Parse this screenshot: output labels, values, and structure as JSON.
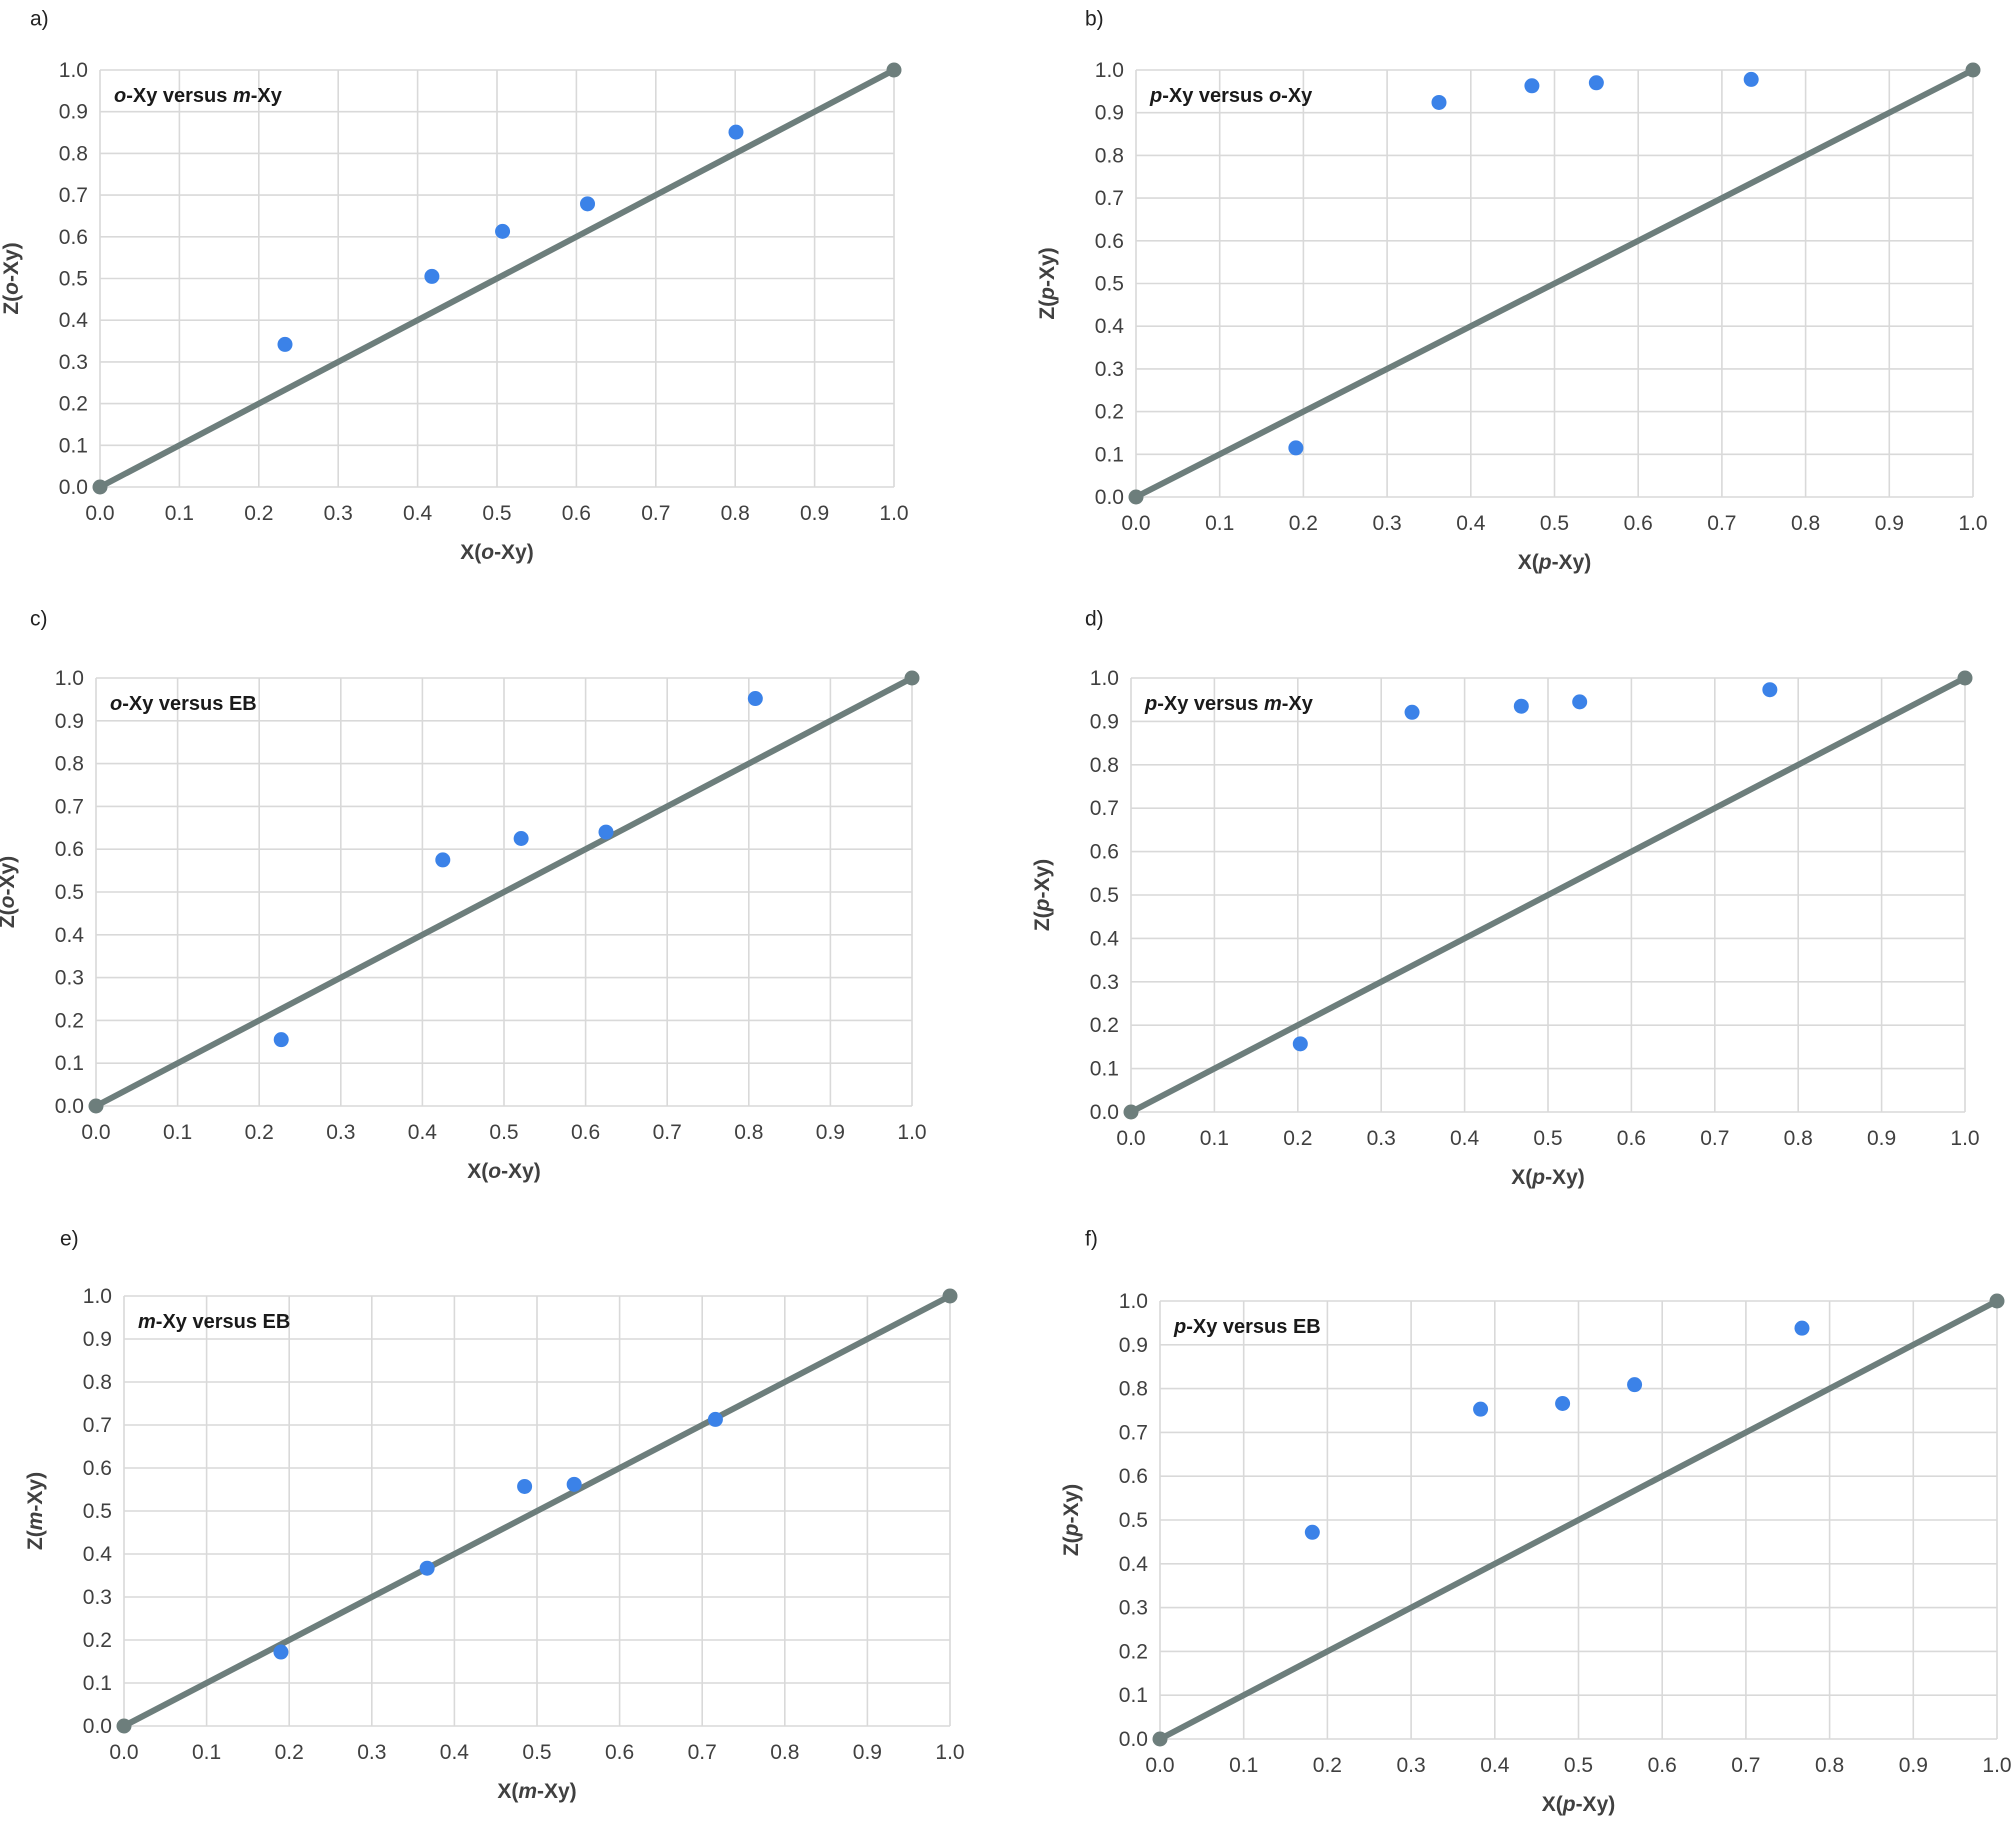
{
  "style": {
    "point_color": "#3b82e8",
    "line_color": "#6d7e7c",
    "grid_color": "#d9d9d9",
    "text_color": "#404040"
  },
  "chart_data": [
    {
      "panel": "a)",
      "type": "scatter",
      "title": "o-Xy versus m-Xy",
      "title_parts": [
        [
          "o",
          "italic"
        ],
        [
          "-Xy versus ",
          "normal"
        ],
        [
          "m",
          "italic"
        ],
        [
          "-Xy",
          "normal"
        ]
      ],
      "xlabel": "X(o-Xy)",
      "xlabel_parts": [
        [
          "X(",
          "normal"
        ],
        [
          "o",
          "italic"
        ],
        [
          "-Xy)",
          "normal"
        ]
      ],
      "ylabel": "Z(o-Xy)",
      "ylabel_parts": [
        [
          "Z(",
          "normal"
        ],
        [
          "o",
          "italic"
        ],
        [
          "-Xy)",
          "normal"
        ]
      ],
      "xlim": [
        0,
        1
      ],
      "ylim": [
        0,
        1
      ],
      "x_ticks": [
        "0.0",
        "0.1",
        "0.2",
        "0.3",
        "0.4",
        "0.5",
        "0.6",
        "0.7",
        "0.8",
        "0.9",
        "1.0"
      ],
      "y_ticks": [
        "0.0",
        "0.1",
        "0.2",
        "0.3",
        "0.4",
        "0.5",
        "0.6",
        "0.7",
        "0.8",
        "0.9",
        "1.0"
      ],
      "grid": true,
      "diagonal": [
        [
          0,
          0
        ],
        [
          1,
          1
        ]
      ],
      "points": [
        [
          0.233,
          0.342
        ],
        [
          0.418,
          0.505
        ],
        [
          0.507,
          0.613
        ],
        [
          0.614,
          0.679
        ],
        [
          0.801,
          0.851
        ]
      ]
    },
    {
      "panel": "b)",
      "type": "scatter",
      "title": "p-Xy versus o-Xy",
      "title_parts": [
        [
          "p",
          "italic"
        ],
        [
          "-Xy versus ",
          "normal"
        ],
        [
          "o",
          "italic"
        ],
        [
          "-Xy",
          "normal"
        ]
      ],
      "xlabel": "X(p-Xy)",
      "xlabel_parts": [
        [
          "X(",
          "normal"
        ],
        [
          "p",
          "italic"
        ],
        [
          "-Xy)",
          "normal"
        ]
      ],
      "ylabel": "Z(p-Xy)",
      "ylabel_parts": [
        [
          "Z(",
          "normal"
        ],
        [
          "p",
          "italic"
        ],
        [
          "-Xy)",
          "normal"
        ]
      ],
      "xlim": [
        0,
        1
      ],
      "ylim": [
        0,
        1
      ],
      "x_ticks": [
        "0.0",
        "0.1",
        "0.2",
        "0.3",
        "0.4",
        "0.5",
        "0.6",
        "0.7",
        "0.8",
        "0.9",
        "1.0"
      ],
      "y_ticks": [
        "0.0",
        "0.1",
        "0.2",
        "0.3",
        "0.4",
        "0.5",
        "0.6",
        "0.7",
        "0.8",
        "0.9",
        "1.0"
      ],
      "grid": true,
      "diagonal": [
        [
          0,
          0
        ],
        [
          1,
          1
        ]
      ],
      "points": [
        [
          0.191,
          0.115
        ],
        [
          0.362,
          0.924
        ],
        [
          0.473,
          0.963
        ],
        [
          0.55,
          0.97
        ],
        [
          0.735,
          0.978
        ]
      ]
    },
    {
      "panel": "c)",
      "type": "scatter",
      "title": "o-Xy versus EB",
      "title_parts": [
        [
          "o",
          "italic"
        ],
        [
          "-Xy versus EB",
          "normal"
        ]
      ],
      "xlabel": "X(o-Xy)",
      "xlabel_parts": [
        [
          "X(",
          "normal"
        ],
        [
          "o",
          "italic"
        ],
        [
          "-Xy)",
          "normal"
        ]
      ],
      "ylabel": "Z(o-Xy)",
      "ylabel_parts": [
        [
          "Z(",
          "normal"
        ],
        [
          "o",
          "italic"
        ],
        [
          "-Xy)",
          "normal"
        ]
      ],
      "xlim": [
        0,
        1
      ],
      "ylim": [
        0,
        1
      ],
      "x_ticks": [
        "0.0",
        "0.1",
        "0.2",
        "0.3",
        "0.4",
        "0.5",
        "0.6",
        "0.7",
        "0.8",
        "0.9",
        "1.0"
      ],
      "y_ticks": [
        "0.0",
        "0.1",
        "0.2",
        "0.3",
        "0.4",
        "0.5",
        "0.6",
        "0.7",
        "0.8",
        "0.9",
        "1.0"
      ],
      "grid": true,
      "diagonal": [
        [
          0,
          0
        ],
        [
          1,
          1
        ]
      ],
      "points": [
        [
          0.227,
          0.155
        ],
        [
          0.425,
          0.575
        ],
        [
          0.521,
          0.625
        ],
        [
          0.625,
          0.64
        ],
        [
          0.808,
          0.952
        ]
      ]
    },
    {
      "panel": "d)",
      "type": "scatter",
      "title": "p-Xy versus m-Xy",
      "title_parts": [
        [
          "p",
          "italic"
        ],
        [
          "-Xy versus ",
          "normal"
        ],
        [
          "m",
          "italic"
        ],
        [
          "-Xy",
          "normal"
        ]
      ],
      "xlabel": "X(p-Xy)",
      "xlabel_parts": [
        [
          "X(",
          "normal"
        ],
        [
          "p",
          "italic"
        ],
        [
          "-Xy)",
          "normal"
        ]
      ],
      "ylabel": "Z(p-Xy)",
      "ylabel_parts": [
        [
          "Z(",
          "normal"
        ],
        [
          "p",
          "italic"
        ],
        [
          "-Xy)",
          "normal"
        ]
      ],
      "xlim": [
        0,
        1
      ],
      "ylim": [
        0,
        1
      ],
      "x_ticks": [
        "0.0",
        "0.1",
        "0.2",
        "0.3",
        "0.4",
        "0.5",
        "0.6",
        "0.7",
        "0.8",
        "0.9",
        "1.0"
      ],
      "y_ticks": [
        "0.0",
        "0.1",
        "0.2",
        "0.3",
        "0.4",
        "0.5",
        "0.6",
        "0.7",
        "0.8",
        "0.9",
        "1.0"
      ],
      "grid": true,
      "diagonal": [
        [
          0,
          0
        ],
        [
          1,
          1
        ]
      ],
      "points": [
        [
          0.203,
          0.157
        ],
        [
          0.337,
          0.921
        ],
        [
          0.468,
          0.935
        ],
        [
          0.538,
          0.945
        ],
        [
          0.766,
          0.973
        ]
      ]
    },
    {
      "panel": "e)",
      "type": "scatter",
      "title": "m-Xy versus EB",
      "title_parts": [
        [
          "m",
          "italic"
        ],
        [
          "-Xy versus EB",
          "normal"
        ]
      ],
      "xlabel": "X(m-Xy)",
      "xlabel_parts": [
        [
          "X(",
          "normal"
        ],
        [
          "m",
          "italic"
        ],
        [
          "-Xy)",
          "normal"
        ]
      ],
      "ylabel": "Z(m-Xy)",
      "ylabel_parts": [
        [
          "Z(",
          "normal"
        ],
        [
          "m",
          "italic"
        ],
        [
          "-Xy)",
          "normal"
        ]
      ],
      "xlim": [
        0,
        1
      ],
      "ylim": [
        0,
        1
      ],
      "x_ticks": [
        "0.0",
        "0.1",
        "0.2",
        "0.3",
        "0.4",
        "0.5",
        "0.6",
        "0.7",
        "0.8",
        "0.9",
        "1.0"
      ],
      "y_ticks": [
        "0.0",
        "0.1",
        "0.2",
        "0.3",
        "0.4",
        "0.5",
        "0.6",
        "0.7",
        "0.8",
        "0.9",
        "1.0"
      ],
      "grid": true,
      "diagonal": [
        [
          0,
          0
        ],
        [
          1,
          1
        ]
      ],
      "points": [
        [
          0.19,
          0.172
        ],
        [
          0.367,
          0.367
        ],
        [
          0.485,
          0.557
        ],
        [
          0.545,
          0.562
        ],
        [
          0.716,
          0.713
        ]
      ]
    },
    {
      "panel": "f)",
      "type": "scatter",
      "title": "p-Xy versus EB",
      "title_parts": [
        [
          "p",
          "italic"
        ],
        [
          "-Xy versus EB",
          "normal"
        ]
      ],
      "xlabel": "X(p-Xy)",
      "xlabel_parts": [
        [
          "X(",
          "normal"
        ],
        [
          "p",
          "italic"
        ],
        [
          "-Xy)",
          "normal"
        ]
      ],
      "ylabel": "Z(p-Xy)",
      "ylabel_parts": [
        [
          "Z(",
          "normal"
        ],
        [
          "p",
          "italic"
        ],
        [
          "-Xy)",
          "normal"
        ]
      ],
      "xlim": [
        0,
        1
      ],
      "ylim": [
        0,
        1
      ],
      "x_ticks": [
        "0.0",
        "0.1",
        "0.2",
        "0.3",
        "0.4",
        "0.5",
        "0.6",
        "0.7",
        "0.8",
        "0.9",
        "1.0"
      ],
      "y_ticks": [
        "0.0",
        "0.1",
        "0.2",
        "0.3",
        "0.4",
        "0.5",
        "0.6",
        "0.7",
        "0.8",
        "0.9",
        "1.0"
      ],
      "grid": true,
      "diagonal": [
        [
          0,
          0
        ],
        [
          1,
          1
        ]
      ],
      "points": [
        [
          0.182,
          0.472
        ],
        [
          0.383,
          0.753
        ],
        [
          0.481,
          0.766
        ],
        [
          0.567,
          0.809
        ],
        [
          0.767,
          0.938
        ]
      ]
    }
  ]
}
